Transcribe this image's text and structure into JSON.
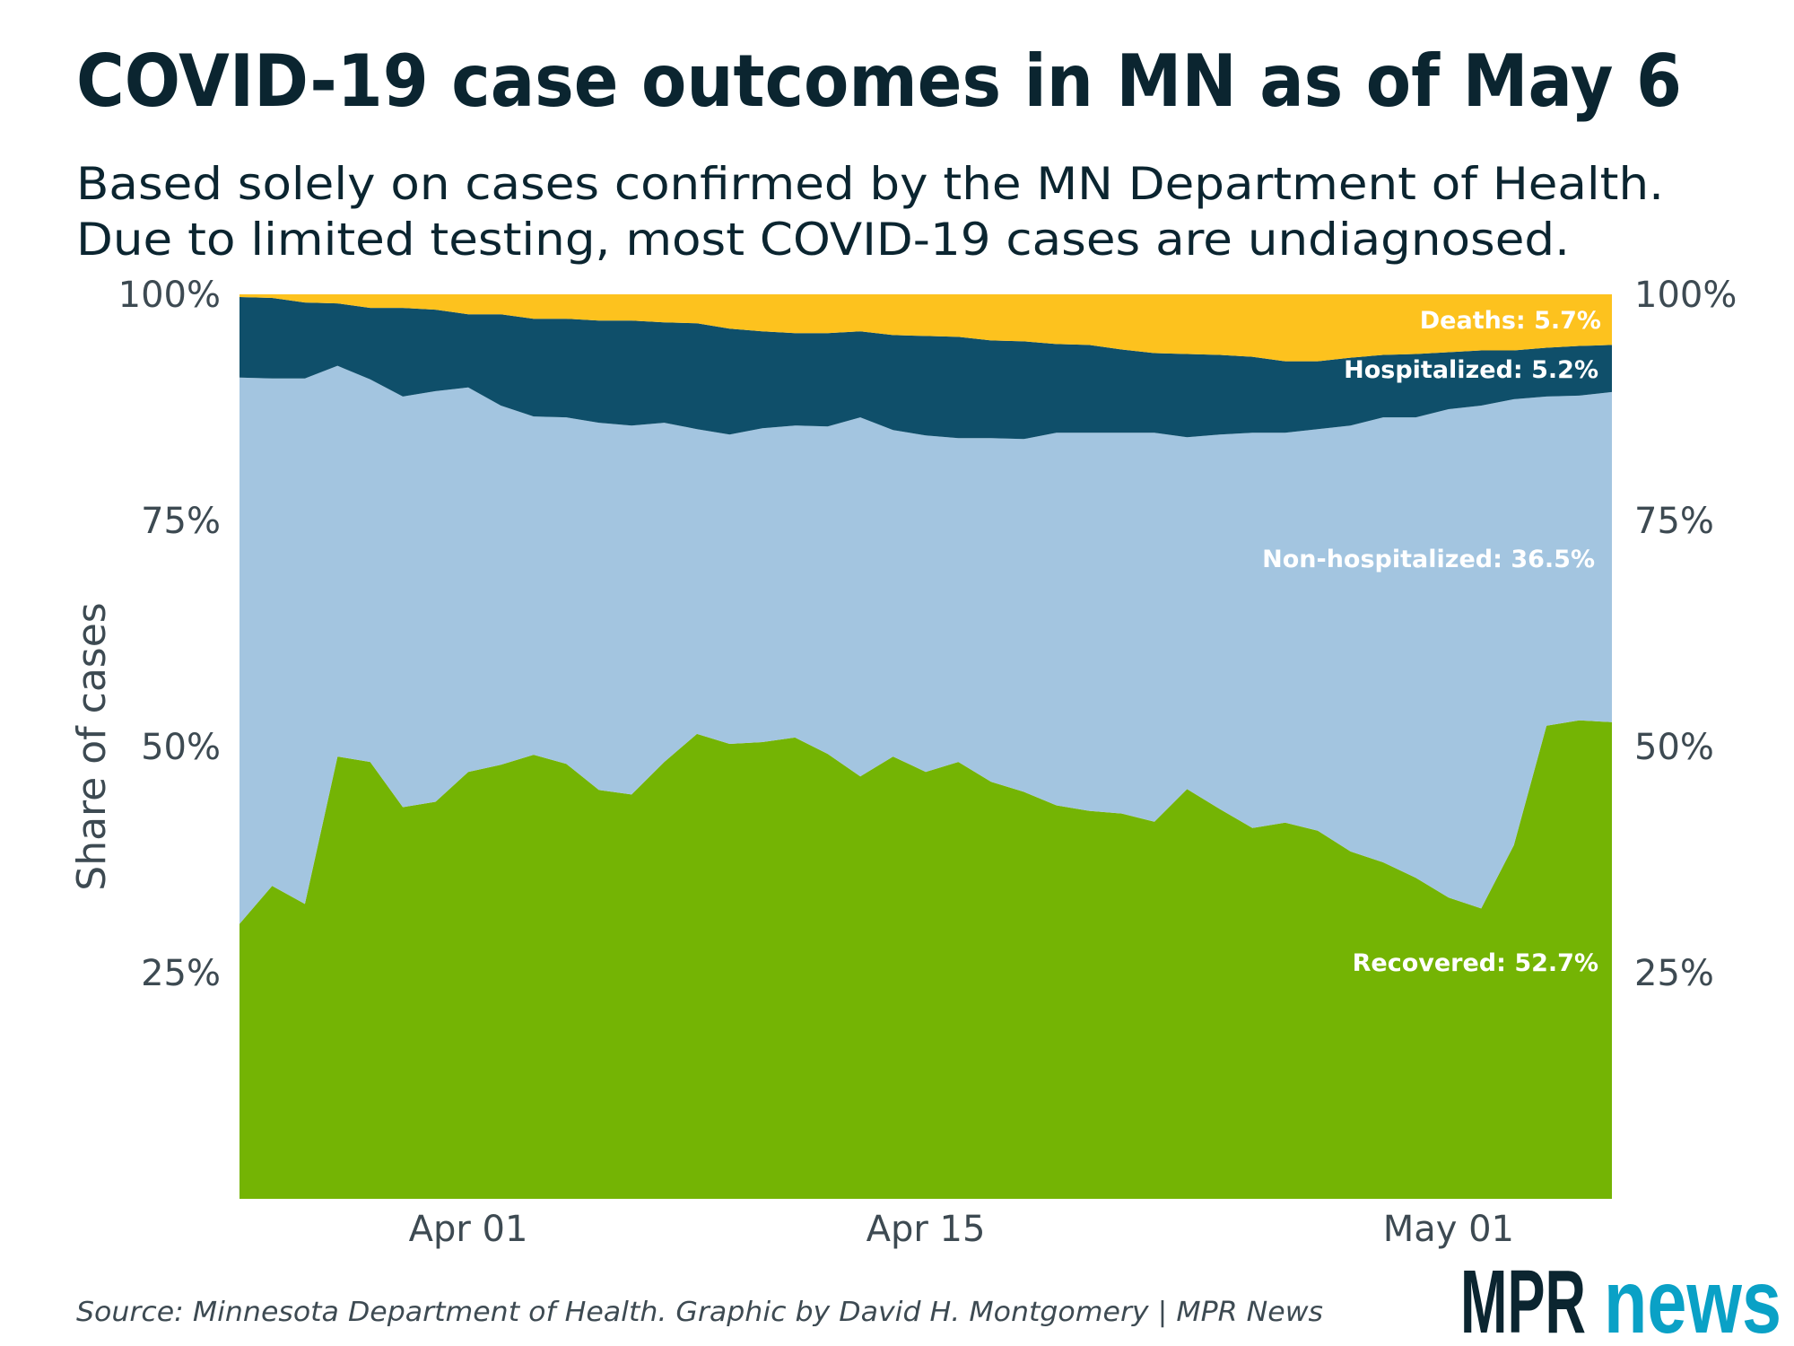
{
  "title": "COVID-19 case outcomes in MN as of May 6",
  "subtitle": [
    "Based solely on cases confirmed by the MN Department of Health.",
    "Due to limited testing, most COVID-19 cases are undiagnosed."
  ],
  "source": "Source: Minnesota Department of Health. Graphic by David H. Montgomery | MPR News",
  "logo": {
    "part1": "MPR",
    "part2": "news",
    "color1": "#0b2530",
    "color2": "#0aa1c6"
  },
  "chart_data": {
    "type": "area",
    "stacked": true,
    "ylabel": "Share of cases",
    "ylim": [
      0,
      100
    ],
    "yticks": [
      "25%",
      "50%",
      "75%",
      "100%"
    ],
    "ytick_values": [
      25,
      50,
      75,
      100
    ],
    "xticks": [
      "Apr 01",
      "Apr 15",
      "May 01"
    ],
    "xtick_dates": [
      "2020-04-01",
      "2020-04-15",
      "2020-05-01"
    ],
    "x": [
      "2020-03-25",
      "2020-03-26",
      "2020-03-27",
      "2020-03-28",
      "2020-03-29",
      "2020-03-30",
      "2020-03-31",
      "2020-04-01",
      "2020-04-02",
      "2020-04-03",
      "2020-04-04",
      "2020-04-05",
      "2020-04-06",
      "2020-04-07",
      "2020-04-08",
      "2020-04-09",
      "2020-04-10",
      "2020-04-11",
      "2020-04-12",
      "2020-04-13",
      "2020-04-14",
      "2020-04-15",
      "2020-04-16",
      "2020-04-17",
      "2020-04-18",
      "2020-04-19",
      "2020-04-20",
      "2020-04-21",
      "2020-04-22",
      "2020-04-23",
      "2020-04-24",
      "2020-04-25",
      "2020-04-26",
      "2020-04-27",
      "2020-04-28",
      "2020-04-29",
      "2020-04-30",
      "2020-05-01",
      "2020-05-02",
      "2020-05-03",
      "2020-05-04",
      "2020-05-05",
      "2020-05-06"
    ],
    "series": [
      {
        "name": "Recovered",
        "label": "Recovered: 52.7%",
        "color": "#74b404",
        "values": [
          30.4,
          34.6,
          32.6,
          48.9,
          48.3,
          43.3,
          43.9,
          47.2,
          48.0,
          49.1,
          48.1,
          45.2,
          44.7,
          48.3,
          51.4,
          50.3,
          50.5,
          51.0,
          49.2,
          46.7,
          48.9,
          47.2,
          48.3,
          46.1,
          45.0,
          43.5,
          42.9,
          42.6,
          41.7,
          45.3,
          43.1,
          41.0,
          41.6,
          40.7,
          38.4,
          37.2,
          35.5,
          33.3,
          32.1,
          39.1,
          52.3,
          52.9,
          52.7
        ]
      },
      {
        "name": "Non-hospitalized",
        "label": "Non-hospitalized: 36.5%",
        "color": "#a3c5e0",
        "values": [
          60.4,
          56.1,
          58.1,
          43.2,
          42.3,
          45.4,
          45.4,
          42.5,
          39.7,
          37.4,
          38.3,
          40.6,
          40.8,
          37.5,
          33.7,
          34.2,
          34.7,
          34.5,
          36.2,
          39.7,
          36.1,
          37.2,
          35.8,
          38.0,
          39.0,
          41.2,
          41.8,
          42.1,
          43.0,
          38.9,
          41.4,
          43.7,
          43.1,
          44.4,
          47.1,
          49.2,
          50.9,
          54.0,
          55.6,
          49.3,
          36.4,
          35.9,
          36.5
        ]
      },
      {
        "name": "Hospitalized",
        "label": "Hospitalized: 5.2%",
        "color": "#0f4f6a",
        "values": [
          8.9,
          8.9,
          8.4,
          6.9,
          7.9,
          9.8,
          9.0,
          8.1,
          10.1,
          10.8,
          10.9,
          11.3,
          11.6,
          11.1,
          11.7,
          11.7,
          10.7,
          10.2,
          10.3,
          9.5,
          10.5,
          11.0,
          11.2,
          10.8,
          10.8,
          9.8,
          9.7,
          9.2,
          8.8,
          9.2,
          8.8,
          8.4,
          7.9,
          7.5,
          7.5,
          6.9,
          7.0,
          6.3,
          6.1,
          5.4,
          5.4,
          5.5,
          5.2
        ]
      },
      {
        "name": "Deaths",
        "label": "Deaths: 5.7%",
        "color": "#fdc21e",
        "values": [
          0.3,
          0.4,
          0.9,
          1.0,
          1.5,
          1.5,
          1.7,
          2.2,
          2.2,
          2.7,
          2.7,
          2.9,
          2.9,
          3.1,
          3.2,
          3.8,
          4.1,
          4.3,
          4.3,
          4.1,
          4.5,
          4.6,
          4.7,
          5.1,
          5.2,
          5.5,
          5.6,
          6.1,
          6.5,
          6.6,
          6.7,
          6.9,
          7.4,
          7.4,
          7.0,
          6.7,
          6.6,
          6.4,
          6.2,
          6.2,
          5.9,
          5.7,
          5.7
        ]
      }
    ]
  }
}
